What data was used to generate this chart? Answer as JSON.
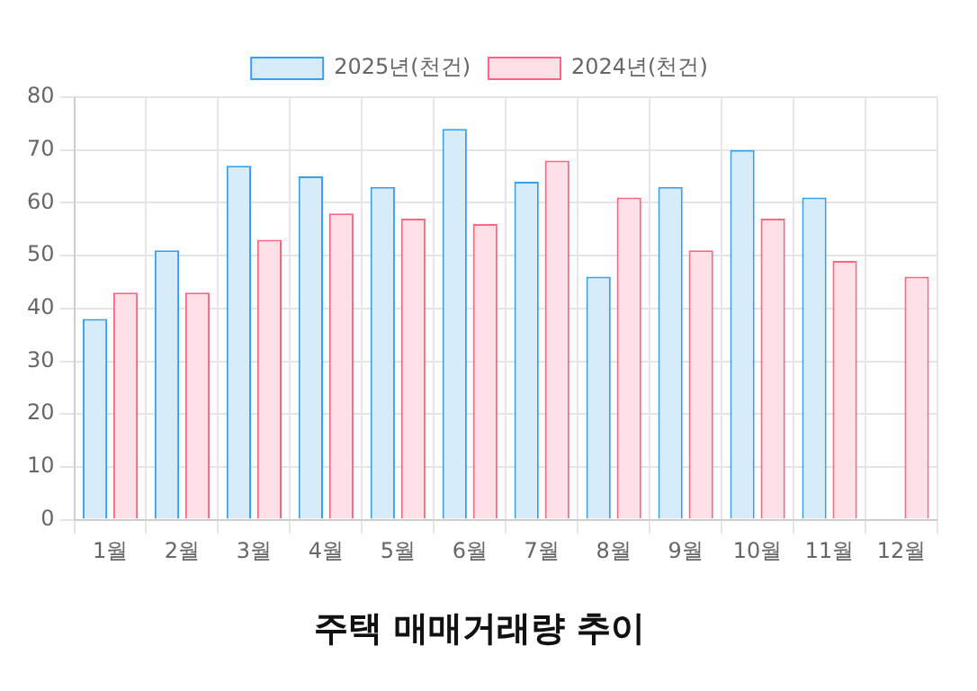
{
  "chart_data": {
    "type": "bar",
    "title": "주택 매매거래량 추이",
    "categories": [
      "1월",
      "2월",
      "3월",
      "4월",
      "5월",
      "6월",
      "7월",
      "8월",
      "9월",
      "10월",
      "11월",
      "12월"
    ],
    "series": [
      {
        "name": "2025년(천건)",
        "color": "#d7ecfb",
        "values": [
          38,
          51,
          67,
          65,
          63,
          74,
          64,
          46,
          63,
          70,
          61,
          null
        ]
      },
      {
        "name": "2024년(천건)",
        "color": "#ffe0e6",
        "values": [
          43,
          43,
          53,
          58,
          57,
          56,
          68,
          61,
          51,
          57,
          49,
          46
        ]
      }
    ],
    "ylim": [
      0,
      80
    ],
    "yticks": [
      0,
      10,
      20,
      30,
      40,
      50,
      60,
      70,
      80
    ],
    "grid": true,
    "legend": "top"
  }
}
